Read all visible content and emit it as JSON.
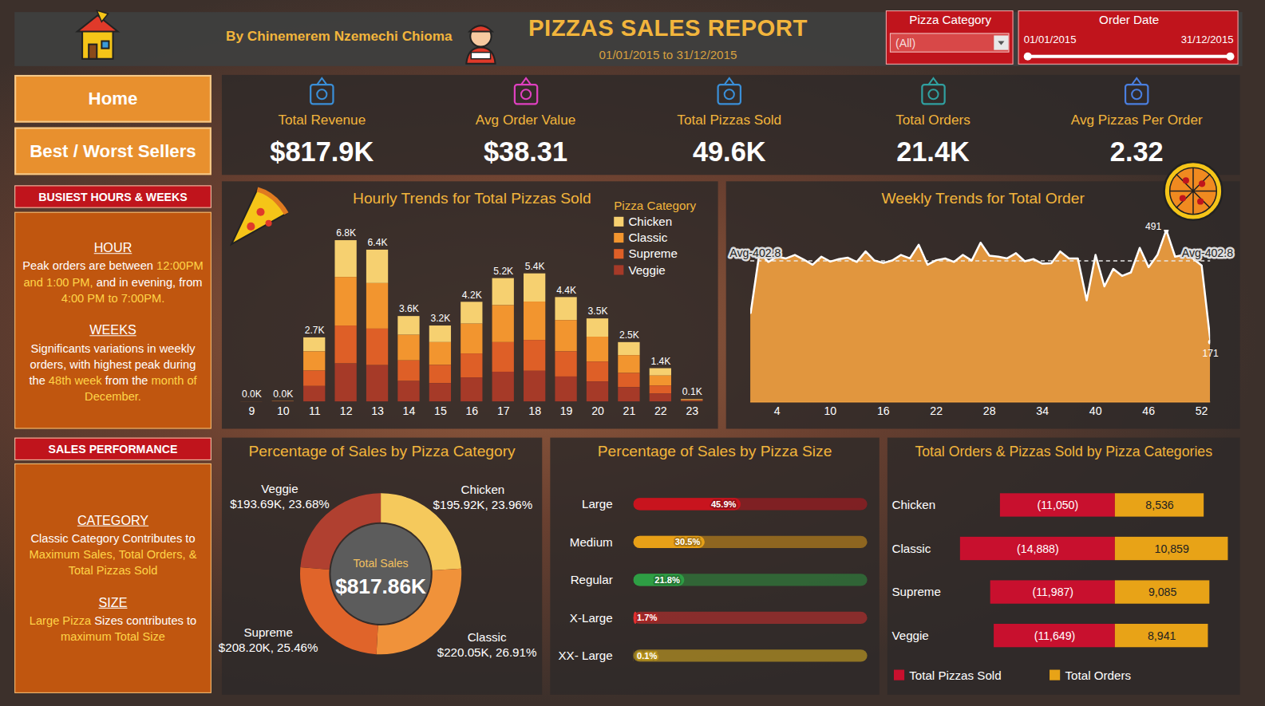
{
  "header": {
    "author": "By Chinemerem Nzemechi Chioma",
    "title": "PIZZAS SALES REPORT",
    "subtitle": "01/01/2015 to 31/12/2015",
    "filters": [
      {
        "label": "Pizza Category",
        "value": "(All)"
      },
      {
        "label": "Order Date",
        "from": "01/01/2015",
        "to": "31/12/2015"
      }
    ]
  },
  "navigation": [
    "Home",
    "Best / Worst Sellers"
  ],
  "kpis": [
    {
      "label": "Total Revenue",
      "value": "$817.9K"
    },
    {
      "label": "Avg Order Value",
      "value": "$38.31"
    },
    {
      "label": "Total Pizzas Sold",
      "value": "49.6K"
    },
    {
      "label": "Total Orders",
      "value": "21.4K"
    },
    {
      "label": "Avg Pizzas Per Order",
      "value": "2.32"
    }
  ],
  "insights": [
    {
      "title": "BUSIEST HOURS & WEEKS",
      "sections": [
        {
          "heading": "HOUR",
          "text": [
            {
              "text": "Peak orders are between "
            },
            {
              "text": "12:00PM and 1:00 PM,",
              "highlight": true
            },
            {
              "text": " and in evening, from "
            },
            {
              "text": "4:00 PM to 7:00PM.",
              "highlight": true
            }
          ]
        },
        {
          "heading": "WEEKS",
          "text": [
            {
              "text": "Significants variations in weekly orders, with highest peak during the "
            },
            {
              "text": "48th week",
              "highlight": true
            },
            {
              "text": " from the "
            },
            {
              "text": "month of December.",
              "highlight": true
            }
          ]
        }
      ]
    },
    {
      "title": "SALES PERFORMANCE",
      "sections": [
        {
          "heading": "CATEGORY",
          "text": [
            {
              "text": "Classic Category Contributes to "
            },
            {
              "text": "Maximum Sales, Total Orders, & Total Pizzas Sold",
              "highlight": true
            }
          ]
        },
        {
          "heading": "SIZE",
          "text": [
            {
              "text": "Large Pizza",
              "highlight": true
            },
            {
              "text": " Sizes contributes to "
            },
            {
              "text": "maximum Total Size",
              "highlight": true
            }
          ]
        }
      ]
    }
  ],
  "chart_data": [
    {
      "type": "bar",
      "title": "Hourly Trends for Total Pizzas Sold",
      "stacked": true,
      "tick_labels": "x",
      "legend": "top-right",
      "legend_title": "Pizza Category",
      "categories": [
        9,
        10,
        11,
        12,
        13,
        14,
        15,
        16,
        17,
        18,
        19,
        20,
        21,
        22,
        23
      ],
      "series": [
        {
          "name": "Chicken",
          "color": "#f6d070",
          "values": [
            0.001,
            0.004,
            0.59,
            1.55,
            1.41,
            0.79,
            0.7,
            0.92,
            1.14,
            1.19,
            0.97,
            0.77,
            0.55,
            0.31,
            0.02
          ]
        },
        {
          "name": "Classic",
          "color": "#f2952f",
          "values": [
            0.002,
            0.006,
            0.81,
            2.05,
            1.92,
            1.08,
            0.96,
            1.26,
            1.56,
            1.62,
            1.32,
            1.05,
            0.75,
            0.42,
            0.03
          ]
        },
        {
          "name": "Supreme",
          "color": "#de5f27",
          "values": [
            0,
            0.004,
            0.65,
            1.6,
            1.54,
            0.87,
            0.77,
            1.01,
            1.25,
            1.3,
            1.06,
            0.84,
            0.6,
            0.34,
            0.03
          ]
        },
        {
          "name": "Veggie",
          "color": "#a63a28",
          "values": [
            0.001,
            0.004,
            0.65,
            1.6,
            1.53,
            0.86,
            0.77,
            1.01,
            1.25,
            1.29,
            1.05,
            0.84,
            0.6,
            0.33,
            0.02
          ]
        }
      ],
      "total_labels": [
        "0.0K",
        "0.0K",
        "2.7K",
        "6.8K",
        "6.4K",
        "3.6K",
        "3.2K",
        "4.2K",
        "5.2K",
        "5.4K",
        "4.4K",
        "3.5K",
        "2.5K",
        "1.4K",
        "0.1K"
      ]
    },
    {
      "type": "area",
      "title": "Weekly Trends for Total Order",
      "color": "#f0a040",
      "tick_labels": "x",
      "x": [
        1,
        2,
        3,
        4,
        5,
        6,
        7,
        8,
        9,
        10,
        11,
        12,
        13,
        14,
        15,
        16,
        17,
        18,
        19,
        20,
        21,
        22,
        23,
        24,
        25,
        26,
        27,
        28,
        29,
        30,
        31,
        32,
        33,
        34,
        35,
        36,
        37,
        38,
        39,
        40,
        41,
        42,
        43,
        44,
        45,
        46,
        47,
        48,
        49,
        50,
        51,
        52,
        53
      ],
      "values": [
        254,
        427,
        400,
        415,
        410,
        420,
        407,
        392,
        415,
        401,
        408,
        412,
        400,
        430,
        404,
        397,
        404,
        420,
        410,
        449,
        392,
        405,
        410,
        400,
        420,
        404,
        455,
        418,
        415,
        410,
        425,
        402,
        408,
        395,
        396,
        430,
        410,
        410,
        290,
        420,
        330,
        380,
        360,
        370,
        440,
        385,
        420,
        491,
        415,
        420,
        410,
        390,
        171
      ],
      "value_labels": [
        null,
        null,
        null,
        null,
        null,
        null,
        null,
        null,
        null,
        null,
        null,
        null,
        null,
        null,
        null,
        null,
        null,
        null,
        null,
        null,
        null,
        null,
        null,
        null,
        null,
        null,
        null,
        null,
        null,
        null,
        null,
        null,
        null,
        null,
        null,
        null,
        null,
        null,
        null,
        null,
        null,
        null,
        null,
        null,
        null,
        null,
        null,
        "491",
        null,
        null,
        null,
        null,
        "171"
      ],
      "xlim": [
        1,
        53
      ],
      "xticks": [
        4,
        10,
        16,
        22,
        28,
        34,
        40,
        46,
        52
      ],
      "reference_line": {
        "value": 402.8,
        "label": "Avg-402.8"
      }
    },
    {
      "type": "donut",
      "title": "Percentage of Sales by Pizza Category",
      "categories": [
        "Chicken",
        "Classic",
        "Supreme",
        "Veggie"
      ],
      "values": [
        195.92,
        220.05,
        208.2,
        193.69
      ],
      "value_labels": [
        "$195.92K, 23.96%",
        "$220.05K, 26.91%",
        "$208.20K, 25.46%",
        "$193.69K, 23.68%"
      ],
      "colors": [
        "#f5c95c",
        "#f0923a",
        "#e0642a",
        "#b04030"
      ],
      "center_label": "Total Sales",
      "center_value": "$817.86K"
    },
    {
      "type": "bar",
      "orientation": "horizontal",
      "title": "Percentage of Sales by Pizza Size",
      "tick_labels": "y",
      "data_labels": true,
      "categories": [
        "Large",
        "Medium",
        "Regular",
        "X-Large",
        "XX- Large"
      ],
      "values": [
        45.9,
        30.5,
        21.8,
        1.7,
        0.1
      ],
      "value_labels": [
        "45.9%",
        "30.5%",
        "21.8%",
        "1.7%",
        "0.1%"
      ],
      "colors": [
        "#c8141e",
        "#e8a017",
        "#2e9e44",
        "#e03030",
        "#f0c020"
      ],
      "xlim": [
        0,
        100
      ]
    },
    {
      "type": "bar",
      "orientation": "horizontal",
      "title": "Total Orders & Pizzas Sold by Pizza Categories",
      "tick_labels": "y",
      "data_labels": true,
      "legend": "bottom",
      "categories": [
        "Chicken",
        "Classic",
        "Supreme",
        "Veggie"
      ],
      "series": [
        {
          "name": "Total Pizzas Sold",
          "color": "#c8102e",
          "values": [
            -11050,
            -14888,
            -11987,
            -11649
          ],
          "value_labels": [
            "(11,050)",
            "(14,888)",
            "(11,987)",
            "(11,649)"
          ]
        },
        {
          "name": "Total Orders",
          "color": "#e8a317",
          "values": [
            8536,
            10859,
            9085,
            8941
          ],
          "value_labels": [
            "8,536",
            "10,859",
            "9,085",
            "8,941"
          ]
        }
      ]
    }
  ]
}
